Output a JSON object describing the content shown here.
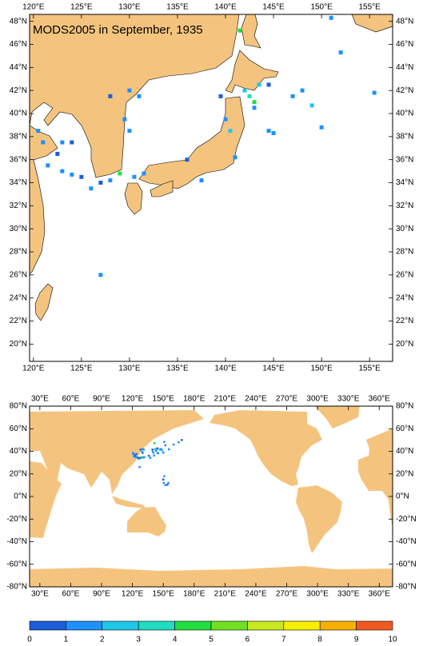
{
  "title": "MODS2005 in September, 1935",
  "top_map": {
    "xlim": [
      119.6,
      157.4
    ],
    "ylim": [
      18.5,
      48.6
    ],
    "xticks": [
      {
        "value": 120,
        "label": "120°E"
      },
      {
        "value": 125,
        "label": "125°E"
      },
      {
        "value": 130,
        "label": "130°E"
      },
      {
        "value": 135,
        "label": "135°E"
      },
      {
        "value": 140,
        "label": "140°E"
      },
      {
        "value": 145,
        "label": "145°E"
      },
      {
        "value": 150,
        "label": "150°E"
      },
      {
        "value": 155,
        "label": "155°E"
      }
    ],
    "yticks": [
      {
        "value": 48,
        "label": "48°N"
      },
      {
        "value": 46,
        "label": "46°N"
      },
      {
        "value": 44,
        "label": "44°N"
      },
      {
        "value": 42,
        "label": "42°N"
      },
      {
        "value": 40,
        "label": "40°N"
      },
      {
        "value": 38,
        "label": "38°N"
      },
      {
        "value": 36,
        "label": "36°N"
      },
      {
        "value": 34,
        "label": "34°N"
      },
      {
        "value": 32,
        "label": "32°N"
      },
      {
        "value": 30,
        "label": "30°N"
      },
      {
        "value": 28,
        "label": "28°N"
      },
      {
        "value": 26,
        "label": "26°N"
      },
      {
        "value": 24,
        "label": "24°N"
      },
      {
        "value": 22,
        "label": "22°N"
      },
      {
        "value": 20,
        "label": "20°N"
      }
    ],
    "cells": [
      {
        "lon": 130.5,
        "lat": 34.5,
        "value": 1.5
      },
      {
        "lon": 129,
        "lat": 34.8,
        "value": 4.5
      },
      {
        "lon": 128,
        "lat": 34.2,
        "value": 1.5
      },
      {
        "lon": 127,
        "lat": 34,
        "value": 0.5
      },
      {
        "lon": 126,
        "lat": 33.5,
        "value": 1.5
      },
      {
        "lon": 125,
        "lat": 34.5,
        "value": 0.5
      },
      {
        "lon": 124,
        "lat": 34.7,
        "value": 1.5
      },
      {
        "lon": 123,
        "lat": 35,
        "value": 1.5
      },
      {
        "lon": 121.5,
        "lat": 35.5,
        "value": 1.5
      },
      {
        "lon": 122.5,
        "lat": 36.5,
        "value": 0.5
      },
      {
        "lon": 121,
        "lat": 37.5,
        "value": 1.5
      },
      {
        "lon": 120.5,
        "lat": 38.5,
        "value": 1.5
      },
      {
        "lon": 124,
        "lat": 37.5,
        "value": 0.5
      },
      {
        "lon": 123,
        "lat": 37.5,
        "value": 1.5
      },
      {
        "lon": 129.5,
        "lat": 39.5,
        "value": 1.5
      },
      {
        "lon": 130,
        "lat": 38.5,
        "value": 1.5
      },
      {
        "lon": 128,
        "lat": 41.5,
        "value": 0.5
      },
      {
        "lon": 130,
        "lat": 42,
        "value": 1.5
      },
      {
        "lon": 131,
        "lat": 41.5,
        "value": 1.5
      },
      {
        "lon": 139.5,
        "lat": 41.5,
        "value": 0.5
      },
      {
        "lon": 140,
        "lat": 39.5,
        "value": 1.5
      },
      {
        "lon": 140.5,
        "lat": 38.5,
        "value": 2.5
      },
      {
        "lon": 142.5,
        "lat": 41.5,
        "value": 3.5
      },
      {
        "lon": 143,
        "lat": 41,
        "value": 4.5
      },
      {
        "lon": 143.5,
        "lat": 42.5,
        "value": 2.5
      },
      {
        "lon": 144.5,
        "lat": 42.5,
        "value": 0.5
      },
      {
        "lon": 143,
        "lat": 40.5,
        "value": 1.5
      },
      {
        "lon": 141.5,
        "lat": 47.2,
        "value": 4.5
      },
      {
        "lon": 147,
        "lat": 41.5,
        "value": 1.5
      },
      {
        "lon": 148,
        "lat": 42,
        "value": 1.5
      },
      {
        "lon": 149,
        "lat": 40.7,
        "value": 2.5
      },
      {
        "lon": 150,
        "lat": 38.8,
        "value": 1.5
      },
      {
        "lon": 155.5,
        "lat": 41.8,
        "value": 1.5
      },
      {
        "lon": 152,
        "lat": 45.3,
        "value": 1.5
      },
      {
        "lon": 151,
        "lat": 48.3,
        "value": 1.5
      },
      {
        "lon": 141,
        "lat": 36.2,
        "value": 1.5
      },
      {
        "lon": 137.5,
        "lat": 34.2,
        "value": 1.5
      },
      {
        "lon": 136,
        "lat": 36,
        "value": 0.5
      },
      {
        "lon": 131.5,
        "lat": 34.8,
        "value": 1.5
      },
      {
        "lon": 127,
        "lat": 26,
        "value": 1.5
      },
      {
        "lon": 144.5,
        "lat": 38.5,
        "value": 1.5
      },
      {
        "lon": 145,
        "lat": 38.3,
        "value": 1.5
      },
      {
        "lon": 142,
        "lat": 42,
        "value": 2.5
      }
    ]
  },
  "bottom_map": {
    "xlim": [
      20,
      373
    ],
    "ylim": [
      -80,
      80
    ],
    "xticks": [
      {
        "value": 30,
        "label": "30°E"
      },
      {
        "value": 60,
        "label": "60°E"
      },
      {
        "value": 90,
        "label": "90°E"
      },
      {
        "value": 120,
        "label": "120°E"
      },
      {
        "value": 150,
        "label": "150°E"
      },
      {
        "value": 180,
        "label": "180°E"
      },
      {
        "value": 210,
        "label": "210°E"
      },
      {
        "value": 240,
        "label": "240°E"
      },
      {
        "value": 270,
        "label": "270°E"
      },
      {
        "value": 300,
        "label": "300°E"
      },
      {
        "value": 330,
        "label": "330°E"
      },
      {
        "value": 360,
        "label": "360°E"
      }
    ],
    "yticks": [
      {
        "value": 80,
        "label": "80°N"
      },
      {
        "value": 60,
        "label": "60°N"
      },
      {
        "value": 40,
        "label": "40°N"
      },
      {
        "value": 20,
        "label": "20°N"
      },
      {
        "value": 0,
        "label": "0°N"
      },
      {
        "value": -20,
        "label": "-20°N"
      },
      {
        "value": -40,
        "label": "-40°N"
      },
      {
        "value": -60,
        "label": "-60°N"
      },
      {
        "value": -80,
        "label": "-80°N"
      }
    ],
    "cells": [
      {
        "lon": 151,
        "lat": 18,
        "value": 1.5
      },
      {
        "lon": 150,
        "lat": 15,
        "value": 0.5
      },
      {
        "lon": 150.5,
        "lat": 12,
        "value": 1.5
      },
      {
        "lon": 152,
        "lat": 10,
        "value": 1.5
      },
      {
        "lon": 154,
        "lat": 10.5,
        "value": 0.5
      },
      {
        "lon": 155,
        "lat": 12,
        "value": 1.5
      },
      {
        "lon": 160,
        "lat": 46,
        "value": 1.5
      },
      {
        "lon": 165,
        "lat": 48,
        "value": 1.5
      },
      {
        "lon": 168,
        "lat": 50,
        "value": 0.5
      }
    ]
  },
  "colorbar": {
    "levels": [
      0,
      1,
      2,
      3,
      4,
      5,
      6,
      7,
      8,
      9,
      10
    ],
    "colors": [
      "#1a5fd8",
      "#1e90ff",
      "#1fc8e8",
      "#20dcc0",
      "#22e040",
      "#70e020",
      "#c8e820",
      "#f5f000",
      "#f8b000",
      "#f05a20"
    ]
  }
}
